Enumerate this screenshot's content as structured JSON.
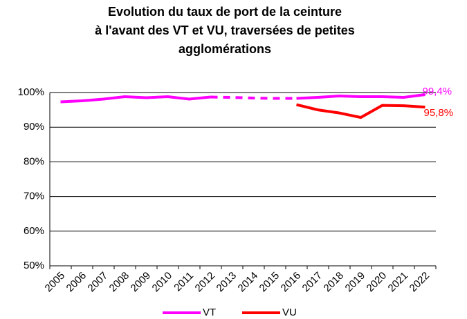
{
  "chart_data": {
    "type": "line",
    "title": [
      "Evolution du taux de port de la ceinture",
      "à l'avant des VT et VU, traversées de petites",
      "agglomérations"
    ],
    "categories": [
      "2005",
      "2006",
      "2007",
      "2008",
      "2009",
      "2010",
      "2011",
      "2012",
      "2013",
      "2014",
      "2015",
      "2016",
      "2017",
      "2018",
      "2019",
      "2020",
      "2021",
      "2022"
    ],
    "series": [
      {
        "name": "VT",
        "color": "#ff00ff",
        "dashed_between": [
          "2012",
          "2016"
        ],
        "values": [
          97.3,
          97.6,
          98.1,
          98.8,
          98.5,
          98.8,
          98.1,
          98.7,
          98.6,
          98.4,
          98.3,
          98.3,
          98.6,
          99.0,
          98.8,
          98.8,
          98.6,
          99.4
        ],
        "value_labels": [
          null,
          null,
          null,
          null,
          null,
          null,
          null,
          null,
          null,
          null,
          null,
          null,
          null,
          null,
          null,
          null,
          null,
          "99,4%"
        ]
      },
      {
        "name": "VU",
        "color": "#ff0000",
        "values": [
          null,
          null,
          null,
          null,
          null,
          null,
          null,
          null,
          null,
          null,
          null,
          96.5,
          95.0,
          94.1,
          92.8,
          96.3,
          96.2,
          95.8
        ],
        "value_labels": [
          null,
          null,
          null,
          null,
          null,
          null,
          null,
          null,
          null,
          null,
          null,
          null,
          null,
          null,
          null,
          null,
          null,
          "95,8%"
        ]
      }
    ],
    "ylim": [
      50,
      100
    ],
    "yticks": [
      {
        "value": 50,
        "label": "50%"
      },
      {
        "value": 60,
        "label": "60%"
      },
      {
        "value": 70,
        "label": "70%"
      },
      {
        "value": 80,
        "label": "80%"
      },
      {
        "value": 90,
        "label": "90%"
      },
      {
        "value": 100,
        "label": "100%"
      }
    ],
    "grid": true,
    "legend": "bottom"
  }
}
